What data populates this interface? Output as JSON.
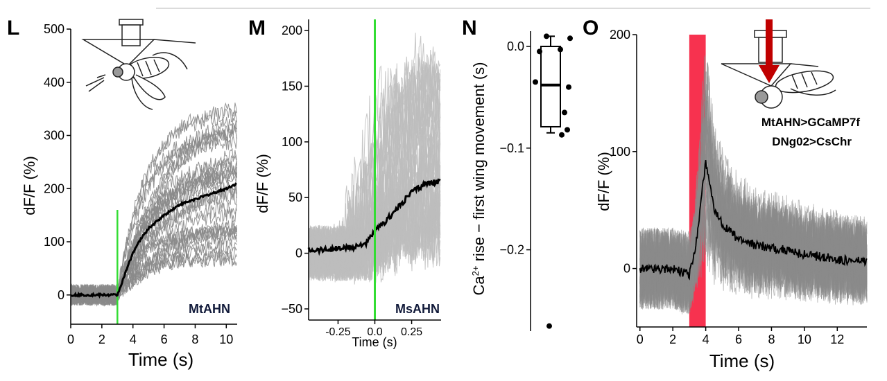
{
  "chart_data": [
    {
      "panel": "L",
      "type": "line",
      "ylabel": "dF/F (%)",
      "xlabel": "Time (s)",
      "xlim": [
        0,
        10.7
      ],
      "ylim": [
        -55,
        500
      ],
      "xticks": [
        0,
        2,
        4,
        6,
        8,
        10
      ],
      "yticks": [
        0,
        100,
        200,
        300,
        400,
        500
      ],
      "stim_x": 3,
      "stim_color": "#33dd33",
      "annotation": "MtAHN",
      "mean_color": "#000000",
      "trial_color": "#8a8a8a",
      "n_trials": 32,
      "series": [
        {
          "x": [
            0,
            1,
            2,
            3,
            3.5,
            4,
            4.5,
            5,
            6,
            7,
            8,
            9,
            10,
            10.7
          ],
          "values": [
            0,
            0,
            0,
            0,
            40,
            80,
            105,
            125,
            150,
            170,
            180,
            190,
            200,
            210
          ]
        }
      ]
    },
    {
      "panel": "M",
      "type": "line",
      "ylabel": "dF/F (%)",
      "xlabel": "Time (s)",
      "xlim": [
        -0.45,
        0.45
      ],
      "ylim": [
        -60,
        210
      ],
      "xticks": [
        -0.25,
        0.0,
        0.25
      ],
      "xticklabels": [
        "-0.25",
        "0.0",
        "0.25"
      ],
      "yticks": [
        -50,
        0,
        50,
        100,
        150,
        200
      ],
      "yticklabels": [
        "−50",
        "0",
        "50",
        "100",
        "150",
        "200"
      ],
      "stim_x": 0,
      "stim_color": "#33dd33",
      "annotation": "MsAHN",
      "mean_color": "#000000",
      "trial_color": "#bdbdbd",
      "n_trials": 40,
      "series": [
        {
          "x": [
            -0.45,
            -0.35,
            -0.25,
            -0.15,
            -0.05,
            0,
            0.05,
            0.15,
            0.25,
            0.35,
            0.45
          ],
          "values": [
            3,
            3,
            4,
            5,
            10,
            20,
            25,
            40,
            55,
            63,
            64
          ]
        }
      ]
    },
    {
      "panel": "N",
      "type": "scatter",
      "ylabel": "Ca²⁺ rise − first wing movement (s)",
      "ylabel_pre": "Ca",
      "ylabel_sup": "2+",
      "ylabel_post": " rise − first wing movement (s)",
      "ylim": [
        -0.28,
        0.015
      ],
      "yticks": [
        0.0,
        -0.1,
        -0.2
      ],
      "yticklabels": [
        "0.0",
        "−0.1",
        "−0.2"
      ],
      "box": {
        "q1": -0.079,
        "median": -0.038,
        "q3": 0.0,
        "whisker_low": -0.085,
        "whisker_high": 0.01
      },
      "points": [
        0.01,
        0.008,
        -0.005,
        -0.003,
        -0.035,
        -0.04,
        -0.065,
        -0.082,
        -0.087,
        -0.275
      ]
    },
    {
      "panel": "O",
      "type": "line",
      "ylabel": "dF/F (%)",
      "xlabel": "Time (s)",
      "xlim": [
        -0.2,
        13.8
      ],
      "ylim": [
        -50,
        200
      ],
      "xticks": [
        0,
        2,
        4,
        6,
        8,
        10,
        12
      ],
      "yticks": [
        0,
        100,
        200
      ],
      "stim_window": [
        3,
        4
      ],
      "stim_color": "#f7324f",
      "annotation_1": "MtAHN>GCaMP7f",
      "annotation_2": "DNg02>CsChr",
      "mean_color": "#000000",
      "trial_color": "#8a8a8a",
      "n_trials": 30,
      "series": [
        {
          "x": [
            0,
            1,
            2,
            3,
            3.2,
            3.5,
            3.8,
            4,
            4.2,
            4.5,
            5,
            6,
            7,
            8,
            9,
            10,
            11,
            12,
            13,
            13.8
          ],
          "values": [
            0,
            0,
            0,
            -5,
            5,
            30,
            70,
            90,
            75,
            50,
            38,
            25,
            20,
            18,
            15,
            12,
            10,
            8,
            6,
            6
          ]
        }
      ]
    }
  ],
  "colors": {
    "arrow": "#c00000",
    "stim_green": "#33dd33",
    "stim_red": "#f7324f"
  },
  "icons": [
    "fly-wing-illustration",
    "microscope-objective-illustration",
    "optogenetic-arrow-icon"
  ]
}
